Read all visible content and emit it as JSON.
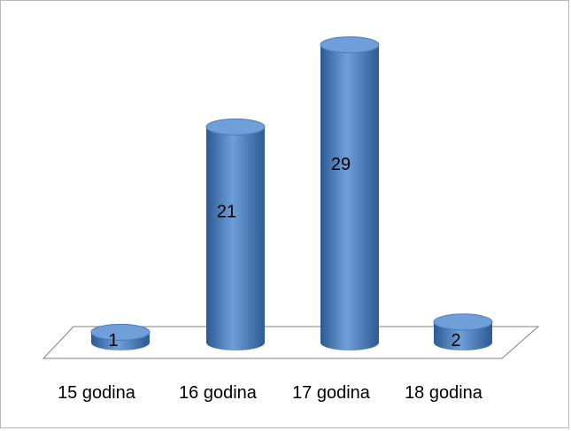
{
  "chart_data": {
    "type": "bar",
    "style": "3d-cylinder",
    "categories": [
      "15 godina",
      "16 godina",
      "17 godina",
      "18 godina"
    ],
    "values": [
      1,
      21,
      29,
      2
    ],
    "title": "",
    "xlabel": "",
    "ylabel": "",
    "ylim": [
      0,
      30
    ],
    "grid": false,
    "legend": "none",
    "colors": {
      "bar": "#4a7ebb",
      "bar_light": "#6f9fd8",
      "bar_dark": "#2c5a94",
      "floor": "#ffffff",
      "floor_stroke": "#808080"
    }
  }
}
